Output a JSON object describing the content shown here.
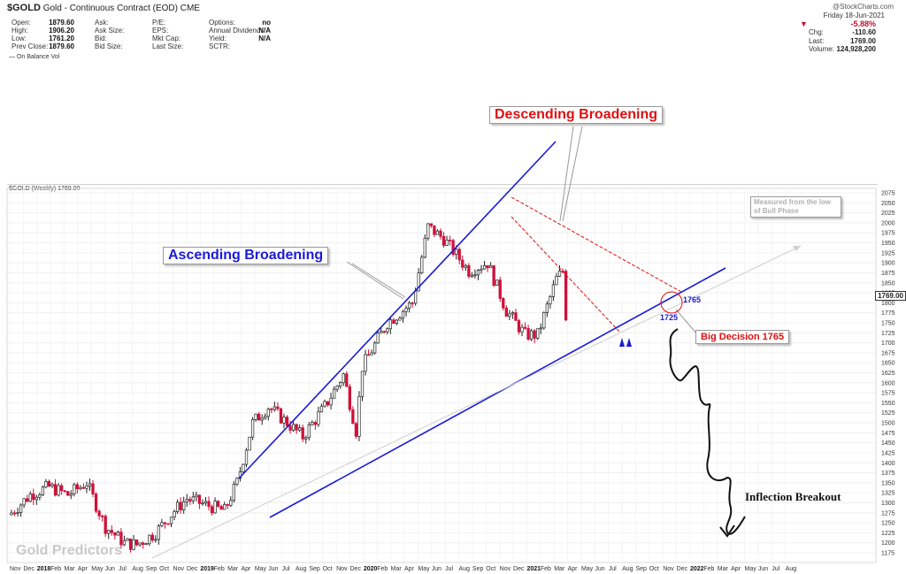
{
  "header": {
    "symbol": "$GOLD",
    "name": "Gold - Continuous Contract (EOD) CME",
    "copyright": "@StockCharts.com",
    "quote_rows": [
      {
        "l1": "Open:",
        "v1": "1879.60",
        "l2": "Ask:",
        "v2": "",
        "l3": "P/E:",
        "v3": "",
        "l4": "Options:",
        "v4": "no"
      },
      {
        "l1": "High:",
        "v1": "1906.20",
        "l2": "Ask Size:",
        "v2": "",
        "l3": "EPS:",
        "v3": "",
        "l4": "Annual Dividend:",
        "v4": "N/A"
      },
      {
        "l1": "Low:",
        "v1": "1761.20",
        "l2": "Bid:",
        "v2": "",
        "l3": "Mkt Cap:",
        "v3": "",
        "l4": "Yield:",
        "v4": "N/A"
      },
      {
        "l1": "Prev Close:",
        "v1": "1879.60",
        "l2": "Bid Size:",
        "v2": "",
        "l3": "Last Size:",
        "v3": "",
        "l4": "SCTR:",
        "v4": ""
      }
    ],
    "date": "Friday 18-Jun-2021",
    "change_pct": "-5.88%",
    "chg_label": "Chg:",
    "chg_value": "-110.60",
    "last_label": "Last:",
    "last_value": "1769.00",
    "volume_label": "Volume:",
    "volume_value": "124,928,200",
    "down_arrow": "▼"
  },
  "indicator_label": "— On Balance Vol",
  "price_panel_title": "$GOLD (Weekly) 1769.00",
  "annotations": {
    "ascending": "Ascending Broadening",
    "descending": "Descending Broadening",
    "measured": "Measured from the low of Bull Phase",
    "big_decision": "Big Decision 1765",
    "level_1765": "1765",
    "level_1725": "1725",
    "inflection": "Inflection Breakout",
    "watermark": "Gold Predictors",
    "last_price_tag": "1769.00"
  },
  "colors": {
    "up_candle": "#ffffff",
    "down_candle": "#d0103a",
    "trendline": "#1a1adc",
    "pattern": "#e01010",
    "projection": "#000000"
  },
  "chart_data": {
    "type": "candlestick",
    "title": "$GOLD (Weekly) 1769.00",
    "y_axis_ticks": [
      1175,
      1200,
      1225,
      1250,
      1275,
      1300,
      1325,
      1350,
      1375,
      1400,
      1425,
      1450,
      1475,
      1500,
      1525,
      1550,
      1575,
      1600,
      1625,
      1650,
      1675,
      1700,
      1725,
      1750,
      1775,
      1800,
      1825,
      1850,
      1875,
      1900,
      1925,
      1950,
      1975,
      2000,
      2025,
      2050,
      2075
    ],
    "ylim": [
      1165,
      2085
    ],
    "x_axis_ticks": [
      {
        "label": "Nov"
      },
      {
        "label": "Dec"
      },
      {
        "label": "2018",
        "year": true
      },
      {
        "label": "Feb"
      },
      {
        "label": "Mar"
      },
      {
        "label": "Apr"
      },
      {
        "label": "May"
      },
      {
        "label": "Jun"
      },
      {
        "label": "Jul"
      },
      {
        "label": "Aug"
      },
      {
        "label": "Sep"
      },
      {
        "label": "Oct"
      },
      {
        "label": "Nov"
      },
      {
        "label": "Dec"
      },
      {
        "label": "2019",
        "year": true
      },
      {
        "label": "Feb"
      },
      {
        "label": "Mar"
      },
      {
        "label": "Apr"
      },
      {
        "label": "May"
      },
      {
        "label": "Jun"
      },
      {
        "label": "Jul"
      },
      {
        "label": "Aug"
      },
      {
        "label": "Sep"
      },
      {
        "label": "Oct"
      },
      {
        "label": "Nov"
      },
      {
        "label": "Dec"
      },
      {
        "label": "2020",
        "year": true
      },
      {
        "label": "Feb"
      },
      {
        "label": "Mar"
      },
      {
        "label": "Apr"
      },
      {
        "label": "May"
      },
      {
        "label": "Jun"
      },
      {
        "label": "Jul"
      },
      {
        "label": "Aug"
      },
      {
        "label": "Sep"
      },
      {
        "label": "Oct"
      },
      {
        "label": "Nov"
      },
      {
        "label": "Dec"
      },
      {
        "label": "2021",
        "year": true
      },
      {
        "label": "Feb"
      },
      {
        "label": "Mar"
      },
      {
        "label": "Apr"
      },
      {
        "label": "May"
      },
      {
        "label": "Jun"
      },
      {
        "label": "Jul"
      },
      {
        "label": "Aug"
      },
      {
        "label": "Sep"
      },
      {
        "label": "Oct"
      },
      {
        "label": "Nov"
      },
      {
        "label": "Dec"
      },
      {
        "label": "2022",
        "year": true
      },
      {
        "label": "Feb"
      },
      {
        "label": "Mar"
      },
      {
        "label": "Apr"
      },
      {
        "label": "May"
      },
      {
        "label": "Jun"
      },
      {
        "label": "Jul"
      },
      {
        "label": "Aug"
      }
    ],
    "weekly_close_waypoints": [
      {
        "week": 0,
        "close": 1275
      },
      {
        "week": 6,
        "close": 1320
      },
      {
        "week": 12,
        "close": 1340
      },
      {
        "week": 18,
        "close": 1320
      },
      {
        "week": 24,
        "close": 1350
      },
      {
        "week": 30,
        "close": 1240
      },
      {
        "week": 36,
        "close": 1200
      },
      {
        "week": 40,
        "close": 1195
      },
      {
        "week": 46,
        "close": 1225
      },
      {
        "week": 52,
        "close": 1280
      },
      {
        "week": 56,
        "close": 1310
      },
      {
        "week": 62,
        "close": 1295
      },
      {
        "week": 68,
        "close": 1280
      },
      {
        "week": 72,
        "close": 1350
      },
      {
        "week": 77,
        "close": 1500
      },
      {
        "week": 82,
        "close": 1540
      },
      {
        "week": 88,
        "close": 1500
      },
      {
        "week": 93,
        "close": 1465
      },
      {
        "week": 100,
        "close": 1540
      },
      {
        "week": 106,
        "close": 1620
      },
      {
        "week": 110,
        "close": 1480
      },
      {
        "week": 112,
        "close": 1640
      },
      {
        "week": 120,
        "close": 1750
      },
      {
        "week": 128,
        "close": 1800
      },
      {
        "week": 133,
        "close": 1990
      },
      {
        "week": 138,
        "close": 1960
      },
      {
        "week": 146,
        "close": 1880
      },
      {
        "week": 152,
        "close": 1900
      },
      {
        "week": 158,
        "close": 1780
      },
      {
        "week": 164,
        "close": 1720
      },
      {
        "week": 168,
        "close": 1720
      },
      {
        "week": 174,
        "close": 1860
      },
      {
        "week": 176,
        "close": 1880
      },
      {
        "week": 177,
        "close": 1769
      }
    ]
  }
}
